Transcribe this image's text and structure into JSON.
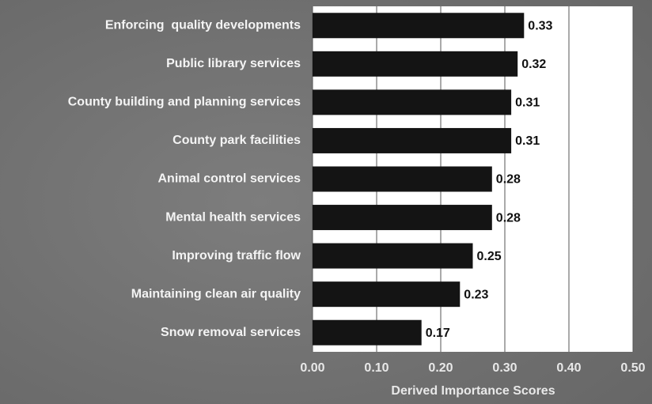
{
  "chart_data": {
    "type": "bar",
    "orientation": "horizontal",
    "x_label": "Derived Importance Scores",
    "categories": [
      "Enforcing  quality developments",
      "Public library services",
      "County building and planning services",
      "County park facilities",
      "Animal control services",
      "Mental health services",
      "Improving traffic flow",
      "Maintaining clean air quality",
      "Snow removal services"
    ],
    "values": [
      0.33,
      0.32,
      0.31,
      0.31,
      0.28,
      0.28,
      0.25,
      0.23,
      0.17
    ],
    "color": "#141414",
    "xlim": [
      0,
      0.5
    ],
    "xticks": [
      {
        "value": 0,
        "label": "0.00"
      },
      {
        "value": 0.1,
        "label": "0.10"
      },
      {
        "value": 0.2,
        "label": "0.20"
      },
      {
        "value": 0.3,
        "label": "0.30"
      },
      {
        "value": 0.4,
        "label": "0.40"
      },
      {
        "value": 0.5,
        "label": "0.50"
      }
    ],
    "grid": true
  }
}
